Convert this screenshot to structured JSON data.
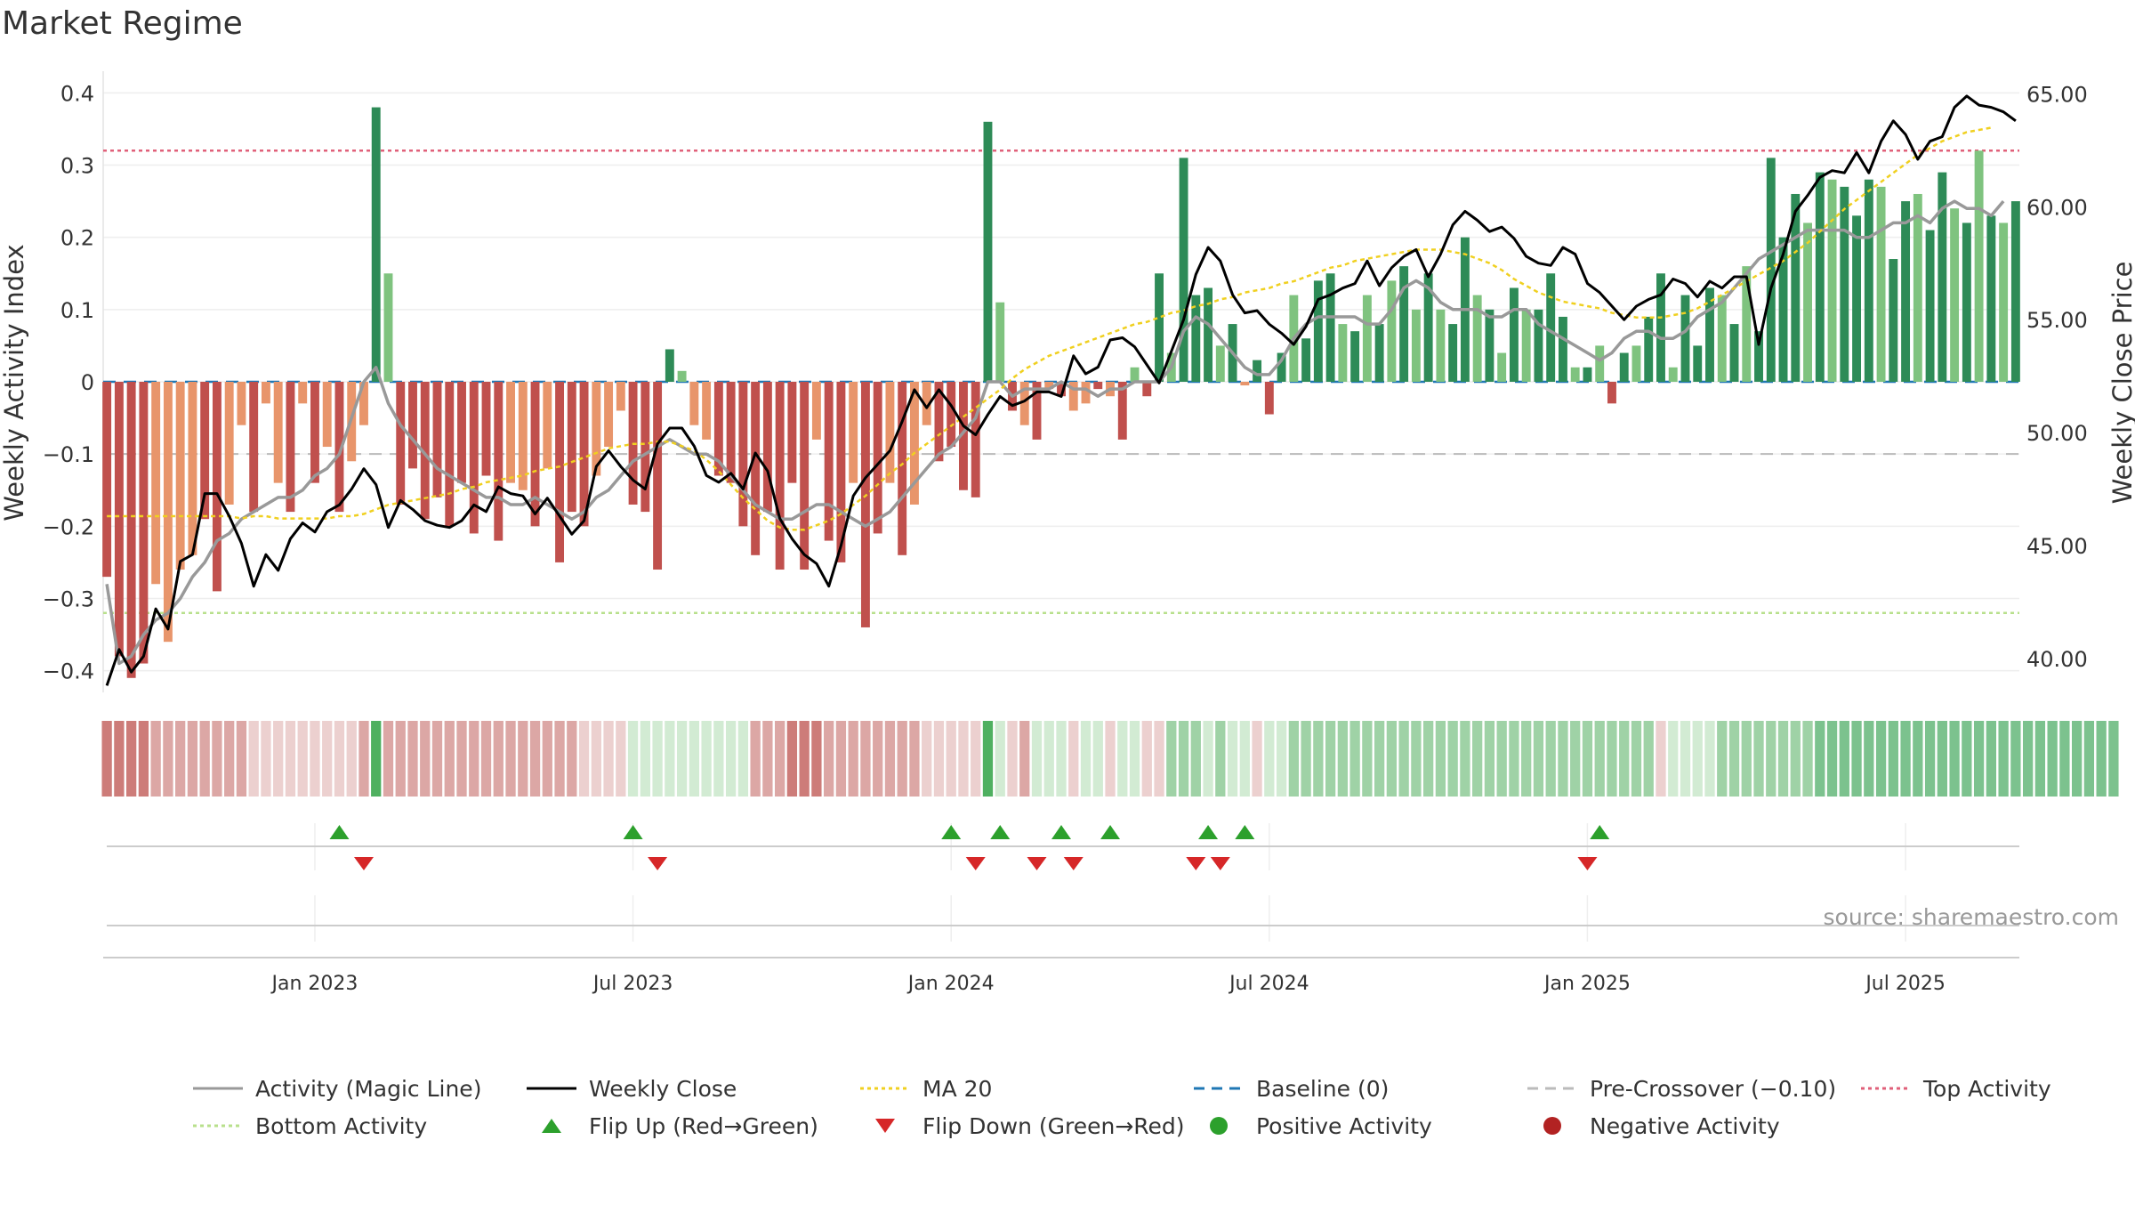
{
  "title": "Market Regime",
  "source": "source: sharemaestro.com",
  "colors": {
    "strong_green": "#2e8b57",
    "light_green": "#7fc37f",
    "strong_red": "#c0504d",
    "light_red": "#e8956b",
    "activity_line": "#999999",
    "close_line": "#000000",
    "ma_line": "#f0d020",
    "baseline": "#1f77b4",
    "pre_crossover": "#bbbbbb",
    "top_activity": "#e0607a",
    "bottom_activity": "#b8e08c",
    "flip_up": "#2ca02c",
    "flip_down": "#d62728",
    "positive_activity": "#2ca02c",
    "negative_activity": "#b22222"
  },
  "legend": [
    {
      "label": "Activity (Magic Line)",
      "kind": "line",
      "color": "#999999",
      "dash": ""
    },
    {
      "label": "Weekly Close",
      "kind": "line",
      "color": "#000000",
      "dash": ""
    },
    {
      "label": "MA 20",
      "kind": "line",
      "color": "#f0d020",
      "dash": "4,4"
    },
    {
      "label": "Baseline (0)",
      "kind": "line",
      "color": "#1f77b4",
      "dash": "12,8"
    },
    {
      "label": "Pre-Crossover (−0.10)",
      "kind": "line",
      "color": "#bbbbbb",
      "dash": "12,8"
    },
    {
      "label": "Top Activity",
      "kind": "line",
      "color": "#e0607a",
      "dash": "4,4"
    },
    {
      "label": "Bottom Activity",
      "kind": "line",
      "color": "#b8e08c",
      "dash": "4,4"
    },
    {
      "label": "Flip Up (Red→Green)",
      "kind": "tri-up",
      "color": "#2ca02c"
    },
    {
      "label": "Flip Down (Green→Red)",
      "kind": "tri-down",
      "color": "#d62728"
    },
    {
      "label": "Positive Activity",
      "kind": "dot",
      "color": "#2ca02c"
    },
    {
      "label": "Negative Activity",
      "kind": "dot",
      "color": "#b22222"
    }
  ],
  "chart_data": {
    "type": "bar",
    "title": "Market Regime",
    "ylabel": "Weekly Activity Index",
    "y2label": "Weekly Close Price",
    "ylim": [
      -0.43,
      0.43
    ],
    "y2lim": [
      38.5,
      66.0
    ],
    "yticks": [
      {
        "value": 0.4,
        "label": "0.4"
      },
      {
        "value": 0.3,
        "label": "0.3"
      },
      {
        "value": 0.2,
        "label": "0.2"
      },
      {
        "value": 0.1,
        "label": "0.1"
      },
      {
        "value": 0,
        "label": "0"
      },
      {
        "value": -0.1,
        "label": "−0.1"
      },
      {
        "value": -0.2,
        "label": "−0.2"
      },
      {
        "value": -0.3,
        "label": "−0.3"
      },
      {
        "value": -0.4,
        "label": "−0.4"
      }
    ],
    "y2ticks": [
      {
        "value": 65,
        "label": "65.00"
      },
      {
        "value": 60,
        "label": "60.00"
      },
      {
        "value": 55,
        "label": "55.00"
      },
      {
        "value": 50,
        "label": "50.00"
      },
      {
        "value": 45,
        "label": "45.00"
      },
      {
        "value": 40,
        "label": "40.00"
      }
    ],
    "xticks": [
      {
        "index": 17,
        "label": "Jan 2023"
      },
      {
        "index": 43,
        "label": "Jul 2023"
      },
      {
        "index": 69,
        "label": "Jan 2024"
      },
      {
        "index": 95,
        "label": "Jul 2024"
      },
      {
        "index": 121,
        "label": "Jan 2025"
      },
      {
        "index": 147,
        "label": "Jul 2025"
      }
    ],
    "reference_lines": {
      "baseline": 0,
      "pre_crossover": -0.1,
      "top_activity": 0.32,
      "bottom_activity": -0.32
    },
    "activity_index": [
      -0.27,
      -0.38,
      -0.41,
      -0.39,
      -0.28,
      -0.36,
      -0.26,
      -0.24,
      -0.19,
      -0.29,
      -0.17,
      -0.06,
      -0.18,
      -0.03,
      -0.14,
      -0.18,
      -0.03,
      -0.14,
      -0.09,
      -0.18,
      -0.11,
      -0.06,
      0.38,
      0.15,
      -0.17,
      -0.12,
      -0.19,
      -0.16,
      -0.2,
      -0.14,
      -0.21,
      -0.13,
      -0.22,
      -0.14,
      -0.15,
      -0.2,
      -0.12,
      -0.25,
      -0.18,
      -0.2,
      -0.13,
      -0.09,
      -0.04,
      -0.17,
      -0.18,
      -0.26,
      0.045,
      0.015,
      -0.06,
      -0.08,
      -0.13,
      -0.14,
      -0.2,
      -0.24,
      -0.18,
      -0.26,
      -0.14,
      -0.26,
      -0.08,
      -0.22,
      -0.25,
      -0.14,
      -0.34,
      -0.21,
      -0.14,
      -0.24,
      -0.17,
      -0.06,
      -0.11,
      -0.09,
      -0.15,
      -0.16,
      0.36,
      0.11,
      -0.04,
      -0.06,
      -0.08,
      -0.01,
      -0.02,
      -0.04,
      -0.03,
      -0.01,
      -0.02,
      -0.08,
      0.02,
      -0.02,
      0.15,
      0.04,
      0.31,
      0.12,
      0.13,
      0.05,
      0.08,
      -0.005,
      0.03,
      -0.045,
      0.04,
      0.12,
      0.06,
      0.14,
      0.15,
      0.08,
      0.07,
      0.12,
      0.08,
      0.14,
      0.16,
      0.1,
      0.15,
      0.1,
      0.08,
      0.2,
      0.12,
      0.1,
      0.04,
      0.13,
      0.1,
      0.1,
      0.15,
      0.09,
      0.02,
      0.02,
      0.05,
      -0.03,
      0.04,
      0.05,
      0.09,
      0.15,
      0.02,
      0.12,
      0.05,
      0.13,
      0.12,
      0.08,
      0.16,
      0.07,
      0.31,
      0.2,
      0.26,
      0.22,
      0.29,
      0.28,
      0.27,
      0.23,
      0.28,
      0.27,
      0.17,
      0.25,
      0.26,
      0.21,
      0.29,
      0.24,
      0.22,
      0.32,
      0.23,
      0.22,
      0.25
    ],
    "bar_strength": [
      1,
      1,
      1,
      1,
      0,
      0,
      0,
      0,
      1,
      1,
      0,
      0,
      1,
      0,
      0,
      1,
      0,
      1,
      0,
      1,
      0,
      0,
      1,
      0,
      1,
      1,
      1,
      1,
      1,
      1,
      1,
      1,
      1,
      0,
      0,
      1,
      0,
      1,
      1,
      1,
      0,
      0,
      0,
      1,
      1,
      1,
      1,
      0,
      0,
      0,
      1,
      1,
      1,
      1,
      1,
      1,
      1,
      1,
      0,
      1,
      1,
      0,
      1,
      1,
      0,
      1,
      0,
      0,
      1,
      1,
      1,
      1,
      1,
      0,
      1,
      0,
      1,
      0,
      1,
      0,
      0,
      1,
      0,
      1,
      0,
      1,
      1,
      0,
      1,
      1,
      1,
      0,
      1,
      0,
      1,
      1,
      1,
      0,
      1,
      1,
      1,
      0,
      1,
      0,
      1,
      0,
      1,
      0,
      1,
      0,
      1,
      1,
      0,
      1,
      0,
      1,
      0,
      1,
      1,
      1,
      0,
      1,
      0,
      1,
      1,
      0,
      1,
      1,
      0,
      1,
      1,
      1,
      0,
      1,
      0,
      1,
      1,
      1,
      1,
      0,
      1,
      0,
      1,
      1,
      1,
      0,
      1,
      1,
      0,
      1,
      1,
      0,
      1,
      0,
      1,
      0,
      1,
      0,
      1,
      0,
      1
    ],
    "magic_line": [
      -0.28,
      -0.39,
      -0.38,
      -0.35,
      -0.33,
      -0.32,
      -0.3,
      -0.27,
      -0.25,
      -0.22,
      -0.21,
      -0.19,
      -0.18,
      -0.17,
      -0.16,
      -0.16,
      -0.15,
      -0.13,
      -0.12,
      -0.1,
      -0.05,
      0.0,
      0.02,
      -0.03,
      -0.06,
      -0.08,
      -0.1,
      -0.12,
      -0.13,
      -0.14,
      -0.15,
      -0.16,
      -0.16,
      -0.17,
      -0.17,
      -0.16,
      -0.17,
      -0.18,
      -0.19,
      -0.18,
      -0.16,
      -0.15,
      -0.13,
      -0.11,
      -0.1,
      -0.09,
      -0.08,
      -0.09,
      -0.1,
      -0.1,
      -0.11,
      -0.13,
      -0.15,
      -0.17,
      -0.18,
      -0.19,
      -0.19,
      -0.18,
      -0.17,
      -0.17,
      -0.18,
      -0.19,
      -0.2,
      -0.19,
      -0.18,
      -0.16,
      -0.14,
      -0.12,
      -0.1,
      -0.09,
      -0.07,
      -0.05,
      0.0,
      0.0,
      -0.02,
      -0.01,
      -0.01,
      -0.01,
      0.0,
      -0.01,
      -0.01,
      -0.02,
      -0.01,
      -0.01,
      0.0,
      0.0,
      0.0,
      0.02,
      0.07,
      0.09,
      0.08,
      0.06,
      0.04,
      0.02,
      0.01,
      0.01,
      0.03,
      0.06,
      0.08,
      0.09,
      0.09,
      0.09,
      0.09,
      0.08,
      0.08,
      0.1,
      0.13,
      0.14,
      0.13,
      0.11,
      0.1,
      0.1,
      0.1,
      0.09,
      0.09,
      0.1,
      0.1,
      0.08,
      0.07,
      0.06,
      0.05,
      0.04,
      0.03,
      0.04,
      0.06,
      0.07,
      0.07,
      0.06,
      0.06,
      0.07,
      0.09,
      0.1,
      0.11,
      0.13,
      0.15,
      0.17,
      0.18,
      0.19,
      0.2,
      0.21,
      0.21,
      0.21,
      0.21,
      0.2,
      0.2,
      0.21,
      0.22,
      0.22,
      0.23,
      0.22,
      0.24,
      0.25,
      0.24,
      0.24,
      0.23,
      0.25
    ],
    "weekly_close": [
      38.8,
      40.4,
      39.4,
      40.1,
      42.2,
      41.3,
      44.3,
      44.6,
      47.3,
      47.3,
      46.3,
      45.1,
      43.2,
      44.6,
      43.9,
      45.3,
      46.0,
      45.6,
      46.5,
      46.8,
      47.5,
      48.4,
      47.7,
      45.8,
      47.0,
      46.6,
      46.1,
      45.9,
      45.8,
      46.1,
      46.8,
      46.5,
      47.6,
      47.3,
      47.2,
      46.4,
      47.1,
      46.3,
      45.5,
      46.1,
      48.5,
      49.2,
      48.5,
      47.9,
      47.5,
      49.5,
      50.2,
      50.2,
      49.4,
      48.1,
      47.8,
      48.2,
      47.5,
      49.1,
      48.3,
      46.2,
      45.3,
      44.6,
      44.2,
      43.2,
      45.0,
      47.2,
      48.0,
      48.6,
      49.2,
      50.5,
      51.9,
      51.1,
      51.9,
      51.2,
      50.3,
      49.9,
      50.8,
      51.6,
      51.2,
      51.4,
      51.8,
      51.8,
      51.6,
      53.4,
      52.6,
      52.9,
      54.1,
      54.2,
      53.8,
      53.0,
      52.2,
      53.6,
      55.0,
      57.0,
      58.2,
      57.6,
      56.1,
      55.3,
      55.4,
      54.8,
      54.4,
      53.9,
      54.7,
      55.9,
      56.1,
      56.4,
      56.6,
      57.6,
      56.5,
      57.3,
      57.8,
      58.1,
      56.9,
      57.9,
      59.2,
      59.8,
      59.4,
      58.9,
      59.1,
      58.6,
      57.8,
      57.5,
      57.4,
      58.2,
      57.9,
      56.6,
      56.2,
      55.6,
      55.0,
      55.6,
      55.9,
      56.1,
      56.8,
      56.6,
      56.0,
      56.7,
      56.4,
      56.9,
      56.9,
      53.9,
      56.4,
      57.9,
      59.8,
      60.5,
      61.3,
      61.6,
      61.5,
      62.4,
      61.5,
      62.9,
      63.8,
      63.2,
      62.1,
      62.9,
      63.1,
      64.4,
      64.9,
      64.5,
      64.4,
      64.2,
      63.8
    ],
    "ma20": [
      46.3,
      46.3,
      46.3,
      46.3,
      46.3,
      46.3,
      46.3,
      46.3,
      46.3,
      46.3,
      46.3,
      46.2,
      46.3,
      46.3,
      46.2,
      46.2,
      46.2,
      46.2,
      46.2,
      46.3,
      46.3,
      46.4,
      46.6,
      46.8,
      46.9,
      47.0,
      47.1,
      47.2,
      47.3,
      47.5,
      47.6,
      47.8,
      47.9,
      48.0,
      48.1,
      48.3,
      48.4,
      48.5,
      48.7,
      48.9,
      49.1,
      49.3,
      49.4,
      49.5,
      49.5,
      49.6,
      49.6,
      49.4,
      49.2,
      48.8,
      48.3,
      47.7,
      47.1,
      46.6,
      46.1,
      45.8,
      45.7,
      45.7,
      45.9,
      46.1,
      46.4,
      46.8,
      47.2,
      47.7,
      48.2,
      48.6,
      49.1,
      49.5,
      49.9,
      50.3,
      50.7,
      51.1,
      51.5,
      51.9,
      52.4,
      52.8,
      53.1,
      53.4,
      53.6,
      53.8,
      54.0,
      54.2,
      54.4,
      54.6,
      54.8,
      54.9,
      55.1,
      55.3,
      55.4,
      55.6,
      55.7,
      55.9,
      56.0,
      56.2,
      56.3,
      56.4,
      56.6,
      56.7,
      56.9,
      57.1,
      57.3,
      57.4,
      57.6,
      57.7,
      57.8,
      57.9,
      58.0,
      58.1,
      58.1,
      58.1,
      58.0,
      57.9,
      57.7,
      57.5,
      57.2,
      56.8,
      56.5,
      56.2,
      56.0,
      55.8,
      55.7,
      55.6,
      55.5,
      55.3,
      55.2,
      55.1,
      55.1,
      55.1,
      55.2,
      55.3,
      55.5,
      55.8,
      56.1,
      56.4,
      56.7,
      57.0,
      57.3,
      57.6,
      58.0,
      58.4,
      58.9,
      59.4,
      59.9,
      60.3,
      60.7,
      61.1,
      61.5,
      61.9,
      62.3,
      62.6,
      62.9,
      63.1,
      63.3,
      63.4,
      63.5
    ],
    "regime_shade": [
      3,
      3,
      3,
      3,
      2,
      2,
      2,
      2,
      2,
      2,
      2,
      2,
      1,
      1,
      1,
      1,
      1,
      1,
      1,
      1,
      1,
      2,
      6,
      2,
      2,
      2,
      2,
      2,
      2,
      2,
      2,
      2,
      2,
      2,
      2,
      2,
      2,
      2,
      2,
      1,
      1,
      1,
      1,
      4,
      4,
      4,
      4,
      4,
      4,
      4,
      4,
      4,
      4,
      2,
      2,
      2,
      3,
      3,
      3,
      2,
      2,
      2,
      2,
      2,
      2,
      2,
      2,
      1,
      1,
      1,
      1,
      1,
      6,
      4,
      1,
      2,
      4,
      4,
      4,
      1,
      4,
      4,
      1,
      4,
      4,
      1,
      1,
      5,
      5,
      5,
      4,
      5,
      4,
      4,
      1,
      4,
      4,
      5,
      5,
      5,
      5,
      5,
      5,
      5,
      5,
      5,
      5,
      5,
      5,
      5,
      5,
      5,
      5,
      5,
      5,
      5,
      5,
      5,
      5,
      5,
      5,
      5,
      5,
      5,
      5,
      5,
      5,
      1,
      4,
      4,
      4,
      4,
      5,
      5,
      5,
      5,
      5,
      5,
      5,
      5,
      6,
      6,
      6,
      6,
      6,
      6,
      6,
      6,
      6,
      6,
      6,
      6,
      6,
      6,
      6,
      6,
      6,
      6,
      6,
      6,
      6,
      6,
      6,
      6,
      6
    ],
    "flip_up": [
      19,
      43,
      69,
      73,
      78,
      82,
      90,
      93,
      122
    ],
    "flip_down": [
      21,
      45,
      71,
      76,
      79,
      89,
      91,
      121
    ]
  }
}
